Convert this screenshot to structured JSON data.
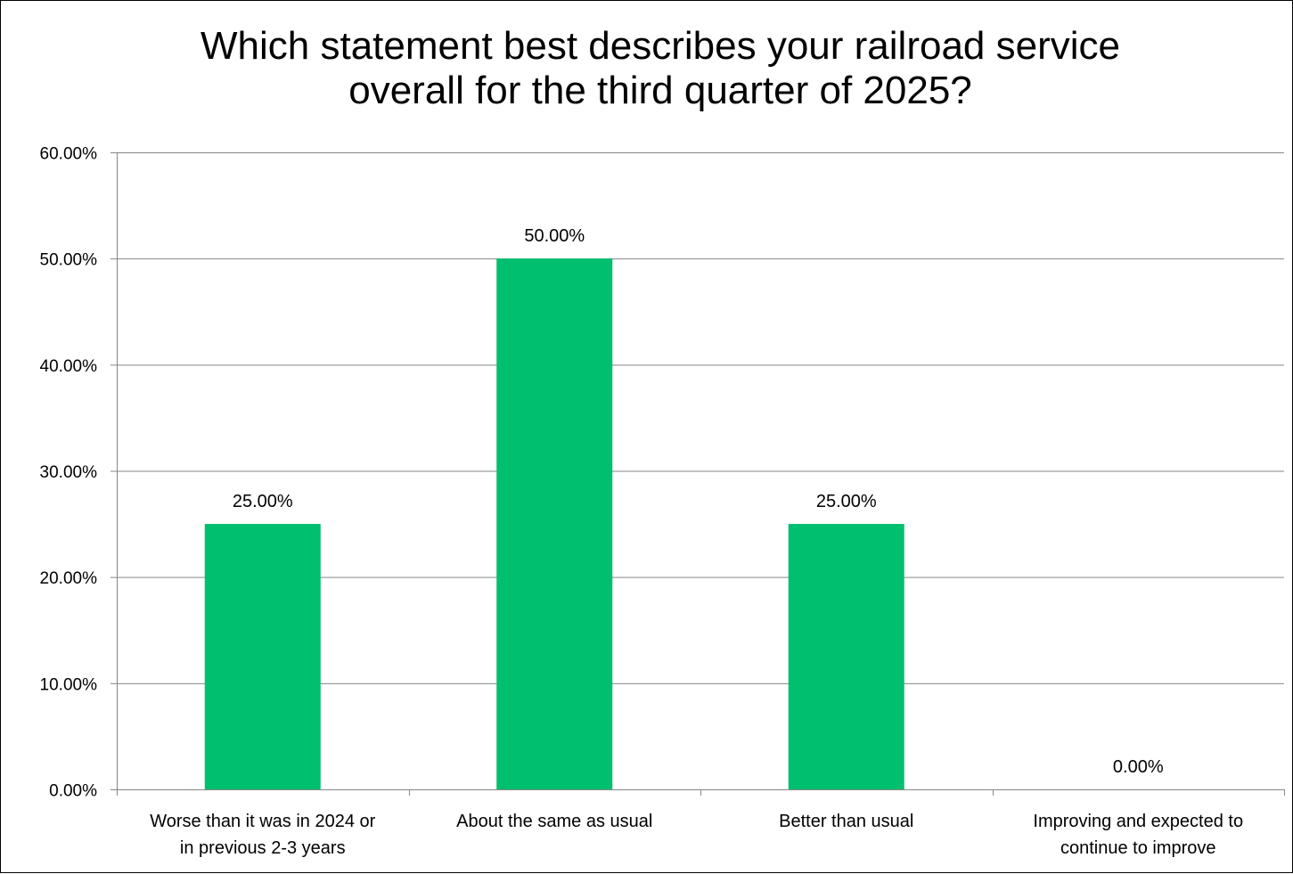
{
  "chart_data": {
    "type": "bar",
    "title_lines": [
      "Which statement best describes your railroad service",
      "overall for the third quarter of 2025?"
    ],
    "categories": [
      [
        "Worse than it was in 2024 or",
        "in previous 2-3 years"
      ],
      [
        "About the same as usual"
      ],
      [
        "Better than usual"
      ],
      [
        "Improving and expected to",
        "continue to improve"
      ]
    ],
    "values": [
      0.25,
      0.5,
      0.25,
      0.0
    ],
    "data_labels": [
      "25.00%",
      "50.00%",
      "25.00%",
      "0.00%"
    ],
    "y_ticks": [
      0,
      0.1,
      0.2,
      0.3,
      0.4,
      0.5,
      0.6
    ],
    "y_tick_labels": [
      "0.00%",
      "10.00%",
      "20.00%",
      "30.00%",
      "40.00%",
      "50.00%",
      "60.00%"
    ],
    "ylim": [
      0,
      0.6
    ],
    "grid": true,
    "legend": "none",
    "xlabel": "",
    "ylabel": "",
    "colors": {
      "bar": "#00BF6F",
      "grid": "#868686",
      "axis": "#868686",
      "text": "#000000"
    }
  }
}
